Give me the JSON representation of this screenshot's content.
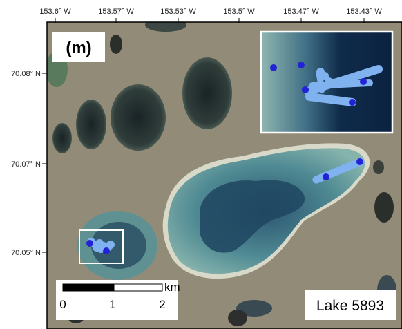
{
  "panel_label": "(m)",
  "lake_label": "Lake 5893",
  "longitude_ticks": [
    "153.6° W",
    "153.57° W",
    "153.53° W",
    "153.5° W",
    "153.47° W",
    "153.43° W"
  ],
  "latitude_ticks": [
    "70.08° N",
    "70.07° N",
    "70.05° N"
  ],
  "scale_bar": {
    "unit": "km",
    "labels": [
      "0",
      "1",
      "2"
    ]
  },
  "colors": {
    "tundra": "#8c8673",
    "lake_light": "#6a9c9b",
    "lake_deep": "#1e3d5c",
    "track_light": "#7fb2ef",
    "track_point": "#2323d6",
    "box_outline": "#ffffff"
  },
  "map_features": [
    "satellite-imagery",
    "thermokarst-lakes",
    "sounding-tracks",
    "inset-zoom-box"
  ]
}
